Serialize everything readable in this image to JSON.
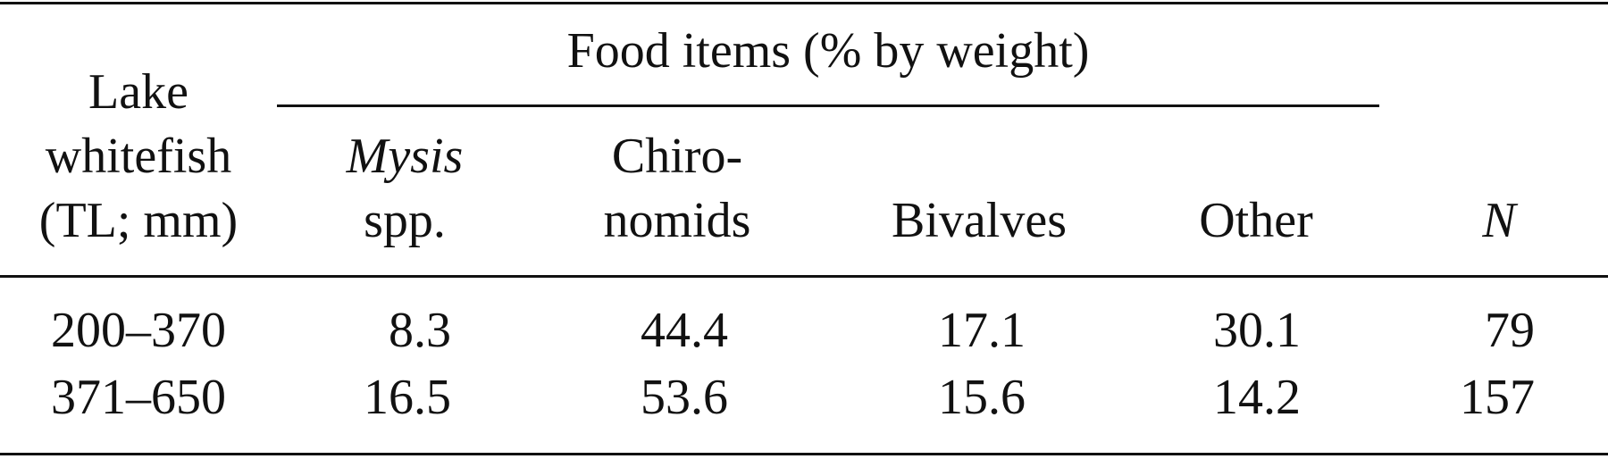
{
  "table": {
    "group_header": "Food items (% by weight)",
    "columns": [
      {
        "lines": [
          "Lake",
          "whitefish",
          "(TL; mm)"
        ]
      },
      {
        "lines": [
          "Mysis",
          "spp."
        ]
      },
      {
        "lines": [
          "Chiro-",
          "nomids"
        ]
      },
      {
        "lines": [
          "Bivalves"
        ]
      },
      {
        "lines": [
          "Other"
        ]
      },
      {
        "lines": [
          "N"
        ]
      }
    ],
    "rows": [
      [
        "200–370",
        8.3,
        44.4,
        17.1,
        30.1,
        79
      ],
      [
        "371–650",
        16.5,
        53.6,
        15.6,
        14.2,
        157
      ]
    ]
  }
}
